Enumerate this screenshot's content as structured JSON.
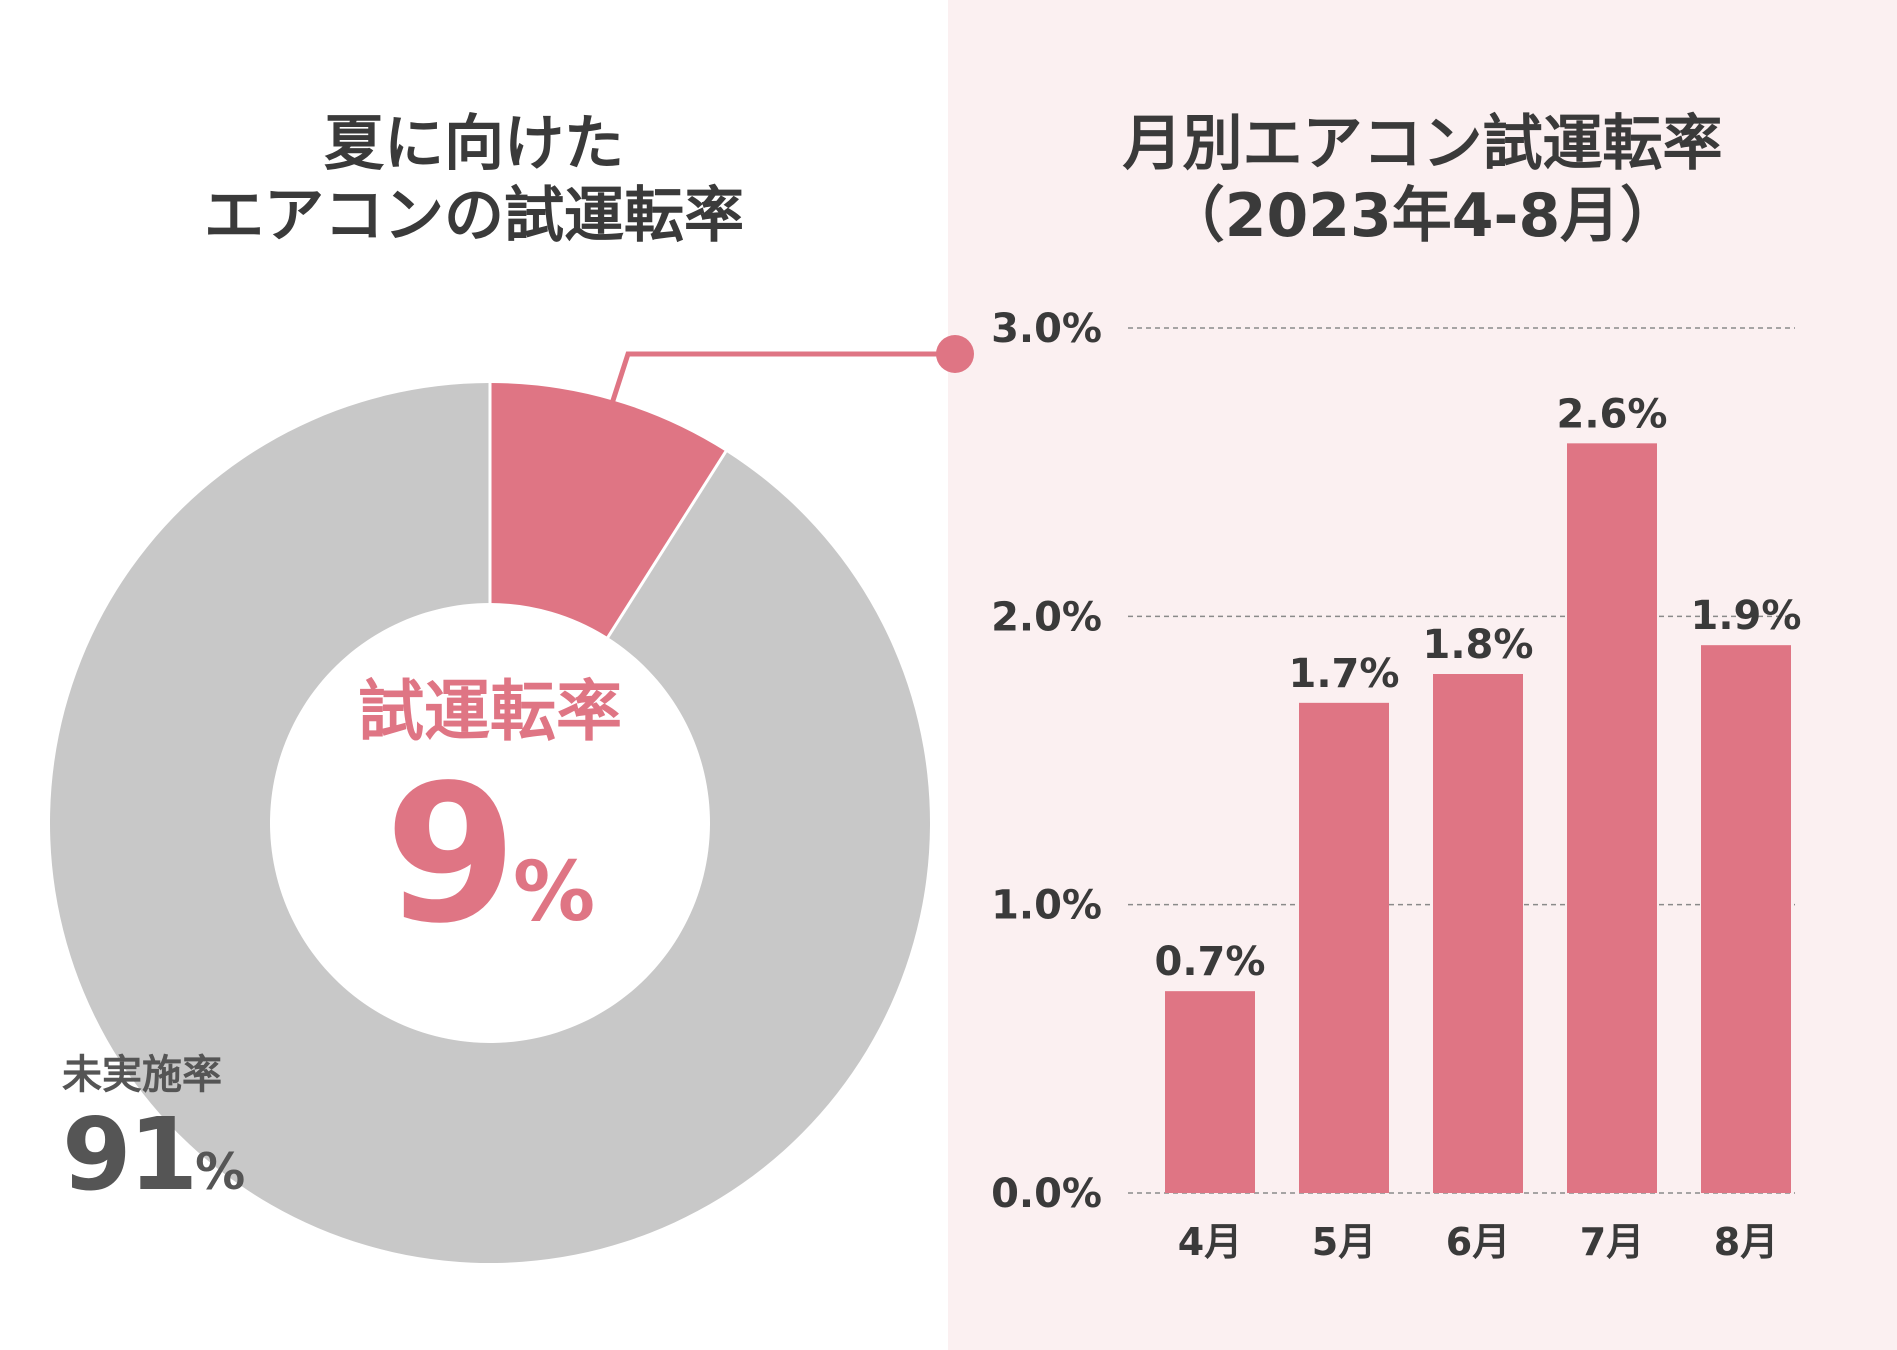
{
  "colors": {
    "accent": "#df7584",
    "rest": "#c8c8c8",
    "text": "#3a3a3a",
    "panel_bg": "#fbf0f1"
  },
  "pie": {
    "title_lines": [
      "夏に向けた",
      "エアコンの試運転率"
    ],
    "center_label": "試運転率",
    "center_value": "9",
    "center_unit": "%",
    "rest_label": "未実施率",
    "rest_value": "91",
    "rest_unit": "%"
  },
  "bar": {
    "title_lines": [
      "月別エアコン試運転率",
      "（2023年4-8月）"
    ]
  },
  "chart_data": [
    {
      "type": "pie",
      "title": "夏に向けたエアコンの試運転率",
      "slices": [
        {
          "label": "試運転率",
          "value": 9
        },
        {
          "label": "未実施率",
          "value": 91
        }
      ]
    },
    {
      "type": "bar",
      "title": "月別エアコン試運転率（2023年4-8月）",
      "categories": [
        "4月",
        "5月",
        "6月",
        "7月",
        "8月"
      ],
      "values": [
        0.7,
        1.7,
        1.8,
        2.6,
        1.9
      ],
      "value_labels": [
        "0.7%",
        "1.7%",
        "1.8%",
        "2.6%",
        "1.9%"
      ],
      "ylim": [
        0,
        3
      ],
      "y_ticks": [
        0,
        1,
        2,
        3
      ],
      "y_tick_labels": [
        "0.0%",
        "1.0%",
        "2.0%",
        "3.0%"
      ],
      "grid": true,
      "xlabel": "",
      "ylabel": ""
    }
  ]
}
